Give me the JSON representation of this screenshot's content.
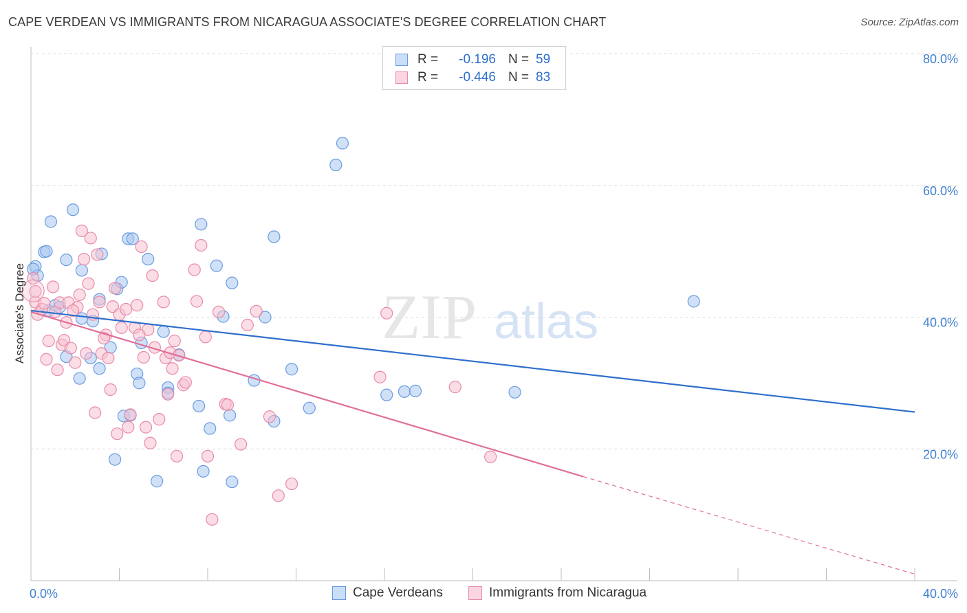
{
  "title": "CAPE VERDEAN VS IMMIGRANTS FROM NICARAGUA ASSOCIATE'S DEGREE CORRELATION CHART",
  "source": "Source: ZipAtlas.com",
  "watermark": {
    "zip": "ZIP",
    "atlas": "atlas"
  },
  "legend": {
    "rows": [
      {
        "r_label": "R =",
        "r_value": "-0.196",
        "n_label": "N =",
        "n_value": "59",
        "color": "#a9c8f0",
        "border": "#6a9be0"
      },
      {
        "r_label": "R =",
        "r_value": "-0.446",
        "n_label": "N =",
        "n_value": "83",
        "color": "#f7c1d2",
        "border": "#e88aa8"
      }
    ],
    "value_color": "#2f6fcc"
  },
  "bottom_legend": [
    {
      "label": "Cape Verdeans",
      "color": "#a9c8f0",
      "border": "#6a9be0"
    },
    {
      "label": "Immigrants from Nicaragua",
      "color": "#f7c1d2",
      "border": "#e88aa8"
    }
  ],
  "chart_data": {
    "type": "scatter",
    "title": "CAPE VERDEAN VS IMMIGRANTS FROM NICARAGUA ASSOCIATE'S DEGREE CORRELATION CHART",
    "xlabel": "",
    "ylabel": "Associate's Degree",
    "xlim": [
      0,
      40
    ],
    "ylim": [
      0,
      80
    ],
    "x_ticks": [
      "0.0%",
      "40.0%"
    ],
    "y_ticks": [
      "20.0%",
      "40.0%",
      "60.0%",
      "80.0%"
    ],
    "y_tick_values": [
      20,
      40,
      60,
      80
    ],
    "grid": true,
    "legend_position": "top-center",
    "series": [
      {
        "name": "Cape Verdeans",
        "color": "#6a9be0",
        "fill": "#a9c8f0",
        "trend": {
          "x": [
            0,
            40
          ],
          "y": [
            41.0,
            25.6
          ]
        },
        "points": [
          [
            0.2,
            47.7
          ],
          [
            0.3,
            46.3
          ],
          [
            0.6,
            49.9
          ],
          [
            0.7,
            50.0
          ],
          [
            0.9,
            54.5
          ],
          [
            0.8,
            41.0
          ],
          [
            1.1,
            41.8
          ],
          [
            1.3,
            41.5
          ],
          [
            1.6,
            48.7
          ],
          [
            1.9,
            56.3
          ],
          [
            1.6,
            34.0
          ],
          [
            2.3,
            47.1
          ],
          [
            2.2,
            30.7
          ],
          [
            2.3,
            39.8
          ],
          [
            2.7,
            33.8
          ],
          [
            2.8,
            39.4
          ],
          [
            3.1,
            32.2
          ],
          [
            3.2,
            49.6
          ],
          [
            3.1,
            42.7
          ],
          [
            3.6,
            35.4
          ],
          [
            3.8,
            18.4
          ],
          [
            3.9,
            44.3
          ],
          [
            4.1,
            45.3
          ],
          [
            4.2,
            25.0
          ],
          [
            4.5,
            25.1
          ],
          [
            4.4,
            51.9
          ],
          [
            4.6,
            51.9
          ],
          [
            4.8,
            31.4
          ],
          [
            4.9,
            30.0
          ],
          [
            5.0,
            36.1
          ],
          [
            5.3,
            48.8
          ],
          [
            5.7,
            15.1
          ],
          [
            6.0,
            37.8
          ],
          [
            6.2,
            29.3
          ],
          [
            6.2,
            28.5
          ],
          [
            6.7,
            34.3
          ],
          [
            7.6,
            26.5
          ],
          [
            7.7,
            54.1
          ],
          [
            7.8,
            16.6
          ],
          [
            8.1,
            23.1
          ],
          [
            8.4,
            47.8
          ],
          [
            8.7,
            40.1
          ],
          [
            9.1,
            15.0
          ],
          [
            9.1,
            45.2
          ],
          [
            9.0,
            25.1
          ],
          [
            10.1,
            30.4
          ],
          [
            10.6,
            40.0
          ],
          [
            11.0,
            52.2
          ],
          [
            11.0,
            24.2
          ],
          [
            11.8,
            32.1
          ],
          [
            12.6,
            26.2
          ],
          [
            13.8,
            63.1
          ],
          [
            14.1,
            66.4
          ],
          [
            16.1,
            28.2
          ],
          [
            16.9,
            28.7
          ],
          [
            17.4,
            28.8
          ],
          [
            21.9,
            28.6
          ],
          [
            30.0,
            42.4
          ],
          [
            0.1,
            47.3
          ]
        ]
      },
      {
        "name": "Immigrants from Nicaragua",
        "color": "#e88aa8",
        "fill": "#f7c1d2",
        "trend": {
          "x": [
            0,
            25
          ],
          "y": [
            40.8,
            15.8
          ]
        },
        "trend_dashed": {
          "x": [
            25,
            40
          ],
          "y": [
            15.8,
            1.0
          ]
        },
        "points": [
          [
            0.1,
            45.9
          ],
          [
            0.2,
            42.3
          ],
          [
            0.3,
            40.4
          ],
          [
            0.5,
            41.2
          ],
          [
            0.6,
            42.1
          ],
          [
            0.7,
            33.6
          ],
          [
            0.8,
            36.4
          ],
          [
            1.0,
            44.6
          ],
          [
            1.1,
            40.8
          ],
          [
            1.2,
            32.0
          ],
          [
            1.3,
            42.2
          ],
          [
            1.4,
            35.8
          ],
          [
            1.5,
            36.5
          ],
          [
            1.6,
            39.2
          ],
          [
            1.7,
            42.2
          ],
          [
            1.8,
            35.3
          ],
          [
            2.0,
            33.1
          ],
          [
            2.1,
            41.5
          ],
          [
            2.2,
            43.4
          ],
          [
            2.3,
            53.1
          ],
          [
            2.4,
            48.8
          ],
          [
            2.5,
            34.5
          ],
          [
            2.6,
            45.1
          ],
          [
            2.7,
            52.0
          ],
          [
            2.8,
            40.4
          ],
          [
            2.9,
            25.5
          ],
          [
            3.0,
            49.5
          ],
          [
            3.1,
            42.3
          ],
          [
            3.2,
            34.5
          ],
          [
            3.4,
            37.3
          ],
          [
            3.5,
            33.8
          ],
          [
            3.6,
            29.0
          ],
          [
            3.7,
            41.6
          ],
          [
            3.8,
            44.4
          ],
          [
            3.9,
            22.3
          ],
          [
            4.0,
            40.4
          ],
          [
            4.1,
            38.4
          ],
          [
            4.3,
            41.2
          ],
          [
            4.4,
            23.3
          ],
          [
            4.5,
            25.2
          ],
          [
            4.7,
            38.4
          ],
          [
            4.8,
            41.8
          ],
          [
            5.0,
            50.7
          ],
          [
            5.1,
            33.9
          ],
          [
            5.2,
            23.3
          ],
          [
            5.3,
            38.1
          ],
          [
            5.4,
            20.9
          ],
          [
            5.5,
            46.3
          ],
          [
            5.6,
            35.4
          ],
          [
            5.8,
            24.5
          ],
          [
            6.0,
            42.3
          ],
          [
            6.1,
            33.8
          ],
          [
            6.2,
            28.3
          ],
          [
            6.3,
            34.6
          ],
          [
            6.4,
            32.2
          ],
          [
            6.6,
            18.9
          ],
          [
            6.7,
            34.2
          ],
          [
            6.9,
            29.7
          ],
          [
            7.0,
            30.1
          ],
          [
            7.4,
            47.2
          ],
          [
            7.5,
            42.4
          ],
          [
            7.7,
            50.9
          ],
          [
            8.0,
            18.9
          ],
          [
            8.2,
            9.3
          ],
          [
            8.5,
            40.8
          ],
          [
            8.8,
            26.8
          ],
          [
            8.9,
            26.7
          ],
          [
            9.5,
            20.7
          ],
          [
            9.8,
            38.8
          ],
          [
            10.2,
            40.9
          ],
          [
            10.8,
            24.9
          ],
          [
            11.2,
            12.9
          ],
          [
            11.8,
            14.7
          ],
          [
            16.1,
            40.6
          ],
          [
            15.8,
            30.9
          ],
          [
            19.2,
            29.4
          ],
          [
            20.8,
            18.8
          ],
          [
            0.2,
            43.9
          ],
          [
            1.9,
            41.0
          ],
          [
            3.3,
            36.8
          ],
          [
            4.9,
            37.3
          ],
          [
            6.5,
            36.4
          ],
          [
            7.9,
            37.0
          ]
        ]
      }
    ]
  }
}
